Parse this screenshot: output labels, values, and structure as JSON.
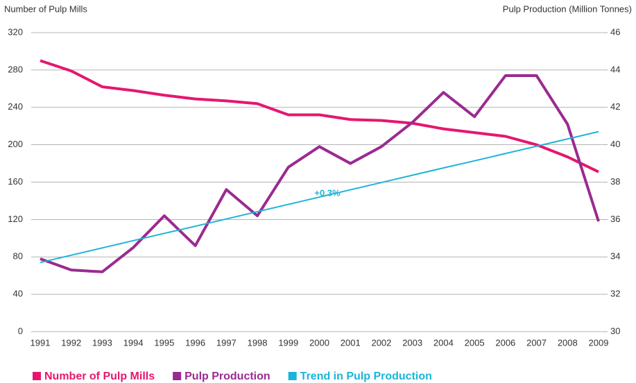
{
  "chart_data": {
    "type": "line",
    "y_label": "Number of Pulp Mills",
    "y2_label": "Pulp Production (Million Tonnes)",
    "categories": [
      "1991",
      "1992",
      "1993",
      "1994",
      "1995",
      "1996",
      "1997",
      "1998",
      "1999",
      "2000",
      "2001",
      "2002",
      "2003",
      "2004",
      "2005",
      "2006",
      "2007",
      "2008",
      "2009"
    ],
    "series": [
      {
        "name": "Number of Pulp Mills",
        "color": "#e5176e",
        "width": 4,
        "values": [
          290,
          279,
          262,
          258,
          253,
          249,
          247,
          244,
          232,
          232,
          227,
          226,
          223,
          217,
          213,
          209,
          200,
          187,
          171
        ]
      },
      {
        "name": "Pulp Production",
        "color": "#9b2a90",
        "axis": "y2",
        "width": 4,
        "values": [
          33.9,
          33.3,
          33.2,
          34.5,
          36.2,
          34.6,
          37.6,
          36.2,
          38.8,
          39.9,
          39.0,
          39.9,
          41.2,
          42.8,
          41.5,
          43.7,
          43.7,
          41.1,
          35.9
        ]
      },
      {
        "name": "Trend in Pulp Production",
        "color": "#1bb4d9",
        "axis": "y2",
        "width": 2,
        "values": [
          33.7,
          34.09,
          34.48,
          34.87,
          35.26,
          35.64,
          36.03,
          36.42,
          36.81,
          37.2,
          37.59,
          37.98,
          38.37,
          38.76,
          39.14,
          39.53,
          39.92,
          40.31,
          40.7
        ]
      }
    ],
    "annotation": "+0.3%",
    "ylim": [
      0,
      320
    ],
    "yticks": [
      0,
      40,
      80,
      120,
      160,
      200,
      240,
      280,
      320
    ],
    "y2lim": [
      30,
      46
    ],
    "y2ticks": [
      30,
      32,
      34,
      36,
      38,
      40,
      42,
      44,
      46
    ],
    "grid": true
  }
}
